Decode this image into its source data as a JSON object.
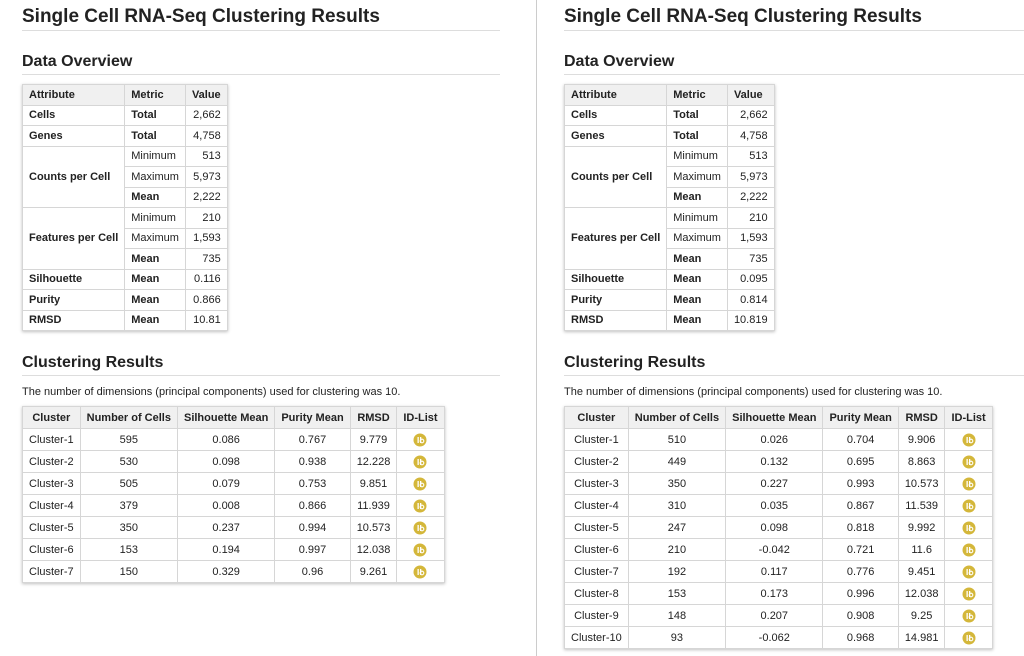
{
  "panels": [
    {
      "title": "Single Cell RNA-Seq Clustering Results",
      "overview": {
        "heading": "Data Overview",
        "header": [
          "Attribute",
          "Metric",
          "Value"
        ],
        "groups": [
          {
            "attribute": "Cells",
            "rows": [
              {
                "metric": "Total",
                "value": "2,662"
              }
            ]
          },
          {
            "attribute": "Genes",
            "rows": [
              {
                "metric": "Total",
                "value": "4,758"
              }
            ]
          },
          {
            "attribute": "Counts per Cell",
            "rows": [
              {
                "metric": "Minimum",
                "value": "513"
              },
              {
                "metric": "Maximum",
                "value": "5,973"
              },
              {
                "metric": "Mean",
                "value": "2,222"
              }
            ]
          },
          {
            "attribute": "Features per Cell",
            "rows": [
              {
                "metric": "Minimum",
                "value": "210"
              },
              {
                "metric": "Maximum",
                "value": "1,593"
              },
              {
                "metric": "Mean",
                "value": "735"
              }
            ]
          },
          {
            "attribute": "Silhouette",
            "rows": [
              {
                "metric": "Mean",
                "value": "0.116"
              }
            ]
          },
          {
            "attribute": "Purity",
            "rows": [
              {
                "metric": "Mean",
                "value": "0.866"
              }
            ]
          },
          {
            "attribute": "RMSD",
            "rows": [
              {
                "metric": "Mean",
                "value": "10.81"
              }
            ]
          }
        ]
      },
      "clustering": {
        "heading": "Clustering Results",
        "note": "The number of dimensions (principal components) used for clustering was 10.",
        "header": [
          "Cluster",
          "Number of Cells",
          "Silhouette Mean",
          "Purity Mean",
          "RMSD",
          "ID-List"
        ],
        "rows": [
          [
            "Cluster-1",
            "595",
            "0.086",
            "0.767",
            "9.779"
          ],
          [
            "Cluster-2",
            "530",
            "0.098",
            "0.938",
            "12.228"
          ],
          [
            "Cluster-3",
            "505",
            "0.079",
            "0.753",
            "9.851"
          ],
          [
            "Cluster-4",
            "379",
            "0.008",
            "0.866",
            "11.939"
          ],
          [
            "Cluster-5",
            "350",
            "0.237",
            "0.994",
            "10.573"
          ],
          [
            "Cluster-6",
            "153",
            "0.194",
            "0.997",
            "12.038"
          ],
          [
            "Cluster-7",
            "150",
            "0.329",
            "0.96",
            "9.261"
          ]
        ]
      }
    },
    {
      "title": "Single Cell RNA-Seq Clustering Results",
      "overview": {
        "heading": "Data Overview",
        "header": [
          "Attribute",
          "Metric",
          "Value"
        ],
        "groups": [
          {
            "attribute": "Cells",
            "rows": [
              {
                "metric": "Total",
                "value": "2,662"
              }
            ]
          },
          {
            "attribute": "Genes",
            "rows": [
              {
                "metric": "Total",
                "value": "4,758"
              }
            ]
          },
          {
            "attribute": "Counts per Cell",
            "rows": [
              {
                "metric": "Minimum",
                "value": "513"
              },
              {
                "metric": "Maximum",
                "value": "5,973"
              },
              {
                "metric": "Mean",
                "value": "2,222"
              }
            ]
          },
          {
            "attribute": "Features per Cell",
            "rows": [
              {
                "metric": "Minimum",
                "value": "210"
              },
              {
                "metric": "Maximum",
                "value": "1,593"
              },
              {
                "metric": "Mean",
                "value": "735"
              }
            ]
          },
          {
            "attribute": "Silhouette",
            "rows": [
              {
                "metric": "Mean",
                "value": "0.095"
              }
            ]
          },
          {
            "attribute": "Purity",
            "rows": [
              {
                "metric": "Mean",
                "value": "0.814"
              }
            ]
          },
          {
            "attribute": "RMSD",
            "rows": [
              {
                "metric": "Mean",
                "value": "10.819"
              }
            ]
          }
        ]
      },
      "clustering": {
        "heading": "Clustering Results",
        "note": "The number of dimensions (principal components) used for clustering was 10.",
        "header": [
          "Cluster",
          "Number of Cells",
          "Silhouette Mean",
          "Purity Mean",
          "RMSD",
          "ID-List"
        ],
        "rows": [
          [
            "Cluster-1",
            "510",
            "0.026",
            "0.704",
            "9.906"
          ],
          [
            "Cluster-2",
            "449",
            "0.132",
            "0.695",
            "8.863"
          ],
          [
            "Cluster-3",
            "350",
            "0.227",
            "0.993",
            "10.573"
          ],
          [
            "Cluster-4",
            "310",
            "0.035",
            "0.867",
            "11.539"
          ],
          [
            "Cluster-5",
            "247",
            "0.098",
            "0.818",
            "9.992"
          ],
          [
            "Cluster-6",
            "210",
            "-0.042",
            "0.721",
            "11.6"
          ],
          [
            "Cluster-7",
            "192",
            "0.117",
            "0.776",
            "9.451"
          ],
          [
            "Cluster-8",
            "153",
            "0.173",
            "0.996",
            "12.038"
          ],
          [
            "Cluster-9",
            "148",
            "0.207",
            "0.908",
            "9.25"
          ],
          [
            "Cluster-10",
            "93",
            "-0.062",
            "0.968",
            "14.981"
          ]
        ]
      }
    }
  ]
}
